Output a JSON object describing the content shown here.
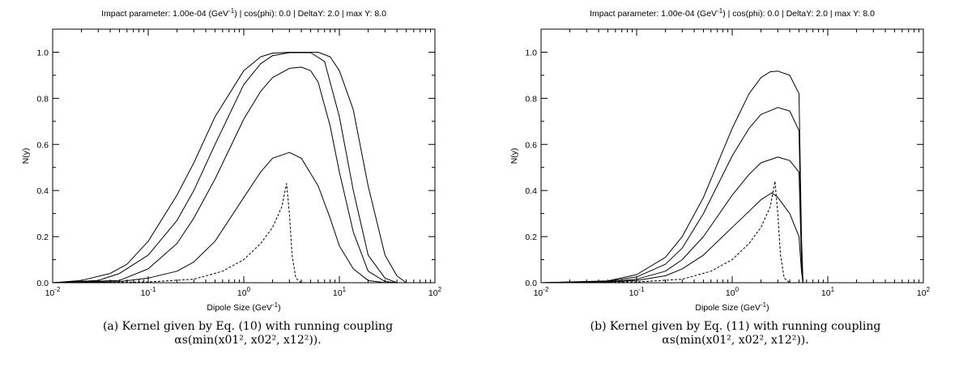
{
  "chart_data": [
    {
      "type": "line",
      "title": "Impact parameter: 1.00e-04 (GeV",
      "title_sup": "-1",
      "title_tail": ") | cos(phi): 0.0 | DeltaY: 2.0 | max Y: 8.0",
      "xlabel": "Dipole Size (GeV",
      "xlabel_sup": "-1",
      "xlabel_tail": ")",
      "ylabel": "N(y)",
      "xscale": "log",
      "xlim": [
        0.01,
        100
      ],
      "ylim": [
        0,
        1.1
      ],
      "x_ticks": [
        {
          "base": "10",
          "exp": "-2"
        },
        {
          "base": "10",
          "exp": "-1"
        },
        {
          "base": "10",
          "exp": "0"
        },
        {
          "base": "10",
          "exp": "1"
        },
        {
          "base": "10",
          "exp": "2"
        }
      ],
      "y_ticks": [
        "0.0",
        "0.2",
        "0.4",
        "0.6",
        "0.8",
        "1.0"
      ],
      "grid": false,
      "series": [
        {
          "style": "dashed",
          "points": [
            [
              0.01,
              0
            ],
            [
              0.1,
              0.003
            ],
            [
              0.3,
              0.015
            ],
            [
              0.6,
              0.05
            ],
            [
              1,
              0.1
            ],
            [
              1.5,
              0.17
            ],
            [
              2,
              0.24
            ],
            [
              2.5,
              0.33
            ],
            [
              2.8,
              0.43
            ],
            [
              3.0,
              0.3
            ],
            [
              3.2,
              0.12
            ],
            [
              3.5,
              0.02
            ],
            [
              4,
              0
            ],
            [
              100,
              0
            ]
          ]
        },
        {
          "style": "solid",
          "points": [
            [
              0.01,
              0
            ],
            [
              0.05,
              0.005
            ],
            [
              0.1,
              0.02
            ],
            [
              0.2,
              0.05
            ],
            [
              0.3,
              0.09
            ],
            [
              0.5,
              0.18
            ],
            [
              1,
              0.37
            ],
            [
              1.5,
              0.48
            ],
            [
              2,
              0.54
            ],
            [
              3,
              0.565
            ],
            [
              4,
              0.54
            ],
            [
              6,
              0.42
            ],
            [
              8,
              0.28
            ],
            [
              10,
              0.16
            ],
            [
              14,
              0.06
            ],
            [
              20,
              0.01
            ],
            [
              30,
              0
            ],
            [
              100,
              0
            ]
          ]
        },
        {
          "style": "solid",
          "points": [
            [
              0.01,
              0
            ],
            [
              0.05,
              0.01
            ],
            [
              0.1,
              0.06
            ],
            [
              0.2,
              0.17
            ],
            [
              0.3,
              0.28
            ],
            [
              0.5,
              0.45
            ],
            [
              1,
              0.71
            ],
            [
              1.5,
              0.83
            ],
            [
              2,
              0.89
            ],
            [
              3,
              0.93
            ],
            [
              4,
              0.935
            ],
            [
              5,
              0.92
            ],
            [
              6,
              0.87
            ],
            [
              8,
              0.68
            ],
            [
              10,
              0.48
            ],
            [
              14,
              0.22
            ],
            [
              20,
              0.05
            ],
            [
              30,
              0.005
            ],
            [
              40,
              0
            ],
            [
              100,
              0
            ]
          ]
        },
        {
          "style": "solid",
          "points": [
            [
              0.01,
              0
            ],
            [
              0.03,
              0.01
            ],
            [
              0.05,
              0.04
            ],
            [
              0.1,
              0.12
            ],
            [
              0.2,
              0.27
            ],
            [
              0.3,
              0.4
            ],
            [
              0.5,
              0.6
            ],
            [
              1,
              0.86
            ],
            [
              1.5,
              0.95
            ],
            [
              2,
              0.985
            ],
            [
              3,
              0.998
            ],
            [
              5,
              0.998
            ],
            [
              7,
              0.96
            ],
            [
              10,
              0.72
            ],
            [
              14,
              0.4
            ],
            [
              20,
              0.12
            ],
            [
              30,
              0.02
            ],
            [
              40,
              0
            ],
            [
              100,
              0
            ]
          ]
        },
        {
          "style": "solid",
          "points": [
            [
              0.01,
              0
            ],
            [
              0.02,
              0.01
            ],
            [
              0.04,
              0.04
            ],
            [
              0.06,
              0.08
            ],
            [
              0.1,
              0.18
            ],
            [
              0.2,
              0.38
            ],
            [
              0.3,
              0.52
            ],
            [
              0.5,
              0.72
            ],
            [
              1,
              0.92
            ],
            [
              1.5,
              0.98
            ],
            [
              2,
              0.996
            ],
            [
              3,
              1.0
            ],
            [
              6,
              1.0
            ],
            [
              8,
              0.98
            ],
            [
              10,
              0.92
            ],
            [
              14,
              0.75
            ],
            [
              20,
              0.42
            ],
            [
              30,
              0.12
            ],
            [
              40,
              0.03
            ],
            [
              50,
              0
            ],
            [
              100,
              0
            ]
          ]
        }
      ]
    },
    {
      "type": "line",
      "title": "Impact parameter: 1.00e-04 (GeV",
      "title_sup": "-1",
      "title_tail": ") | cos(phi): 0.0 | DeltaY: 2.0 | max Y: 8.0",
      "xlabel": "Dipole Size (GeV",
      "xlabel_sup": "-1",
      "xlabel_tail": ")",
      "ylabel": "N(y)",
      "xscale": "log",
      "xlim": [
        0.01,
        100
      ],
      "ylim": [
        0,
        1.1
      ],
      "x_ticks": [
        {
          "base": "10",
          "exp": "-2"
        },
        {
          "base": "10",
          "exp": "-1"
        },
        {
          "base": "10",
          "exp": "0"
        },
        {
          "base": "10",
          "exp": "1"
        },
        {
          "base": "10",
          "exp": "2"
        }
      ],
      "y_ticks": [
        "0.0",
        "0.2",
        "0.4",
        "0.6",
        "0.8",
        "1.0"
      ],
      "grid": false,
      "series": [
        {
          "style": "dashed",
          "points": [
            [
              0.01,
              0
            ],
            [
              0.1,
              0.003
            ],
            [
              0.3,
              0.015
            ],
            [
              0.6,
              0.05
            ],
            [
              1,
              0.1
            ],
            [
              1.5,
              0.17
            ],
            [
              2,
              0.24
            ],
            [
              2.5,
              0.33
            ],
            [
              2.8,
              0.44
            ],
            [
              3.0,
              0.3
            ],
            [
              3.2,
              0.12
            ],
            [
              3.5,
              0.02
            ],
            [
              4,
              0
            ],
            [
              100,
              0
            ]
          ]
        },
        {
          "style": "solid",
          "points": [
            [
              0.01,
              0
            ],
            [
              0.05,
              0.003
            ],
            [
              0.1,
              0.01
            ],
            [
              0.2,
              0.03
            ],
            [
              0.3,
              0.06
            ],
            [
              0.5,
              0.12
            ],
            [
              1,
              0.24
            ],
            [
              1.5,
              0.31
            ],
            [
              2,
              0.36
            ],
            [
              2.6,
              0.39
            ],
            [
              3,
              0.37
            ],
            [
              4,
              0.3
            ],
            [
              5,
              0.2
            ],
            [
              5.3,
              0.05
            ],
            [
              5.5,
              0
            ],
            [
              100,
              0
            ]
          ]
        },
        {
          "style": "solid",
          "points": [
            [
              0.01,
              0
            ],
            [
              0.05,
              0.004
            ],
            [
              0.1,
              0.015
            ],
            [
              0.2,
              0.05
            ],
            [
              0.3,
              0.1
            ],
            [
              0.5,
              0.2
            ],
            [
              1,
              0.38
            ],
            [
              1.5,
              0.47
            ],
            [
              2,
              0.52
            ],
            [
              3,
              0.545
            ],
            [
              4,
              0.53
            ],
            [
              5,
              0.48
            ],
            [
              5.3,
              0.1
            ],
            [
              5.5,
              0
            ],
            [
              100,
              0
            ]
          ]
        },
        {
          "style": "solid",
          "points": [
            [
              0.01,
              0
            ],
            [
              0.05,
              0.006
            ],
            [
              0.1,
              0.025
            ],
            [
              0.2,
              0.08
            ],
            [
              0.3,
              0.15
            ],
            [
              0.5,
              0.3
            ],
            [
              1,
              0.55
            ],
            [
              1.5,
              0.67
            ],
            [
              2,
              0.73
            ],
            [
              3,
              0.76
            ],
            [
              4,
              0.745
            ],
            [
              5,
              0.66
            ],
            [
              5.3,
              0.15
            ],
            [
              5.5,
              0
            ],
            [
              100,
              0
            ]
          ]
        },
        {
          "style": "solid",
          "points": [
            [
              0.01,
              0
            ],
            [
              0.05,
              0.008
            ],
            [
              0.1,
              0.035
            ],
            [
              0.2,
              0.11
            ],
            [
              0.3,
              0.2
            ],
            [
              0.5,
              0.37
            ],
            [
              1,
              0.67
            ],
            [
              1.5,
              0.82
            ],
            [
              2,
              0.89
            ],
            [
              2.5,
              0.915
            ],
            [
              3,
              0.918
            ],
            [
              4,
              0.9
            ],
            [
              5,
              0.82
            ],
            [
              5.3,
              0.2
            ],
            [
              5.5,
              0
            ],
            [
              100,
              0
            ]
          ]
        }
      ]
    }
  ],
  "captions": [
    {
      "line1": "(a) Kernel given by Eq. (10) with running coupling",
      "line2": "αs(min(x01², x02², x12²))."
    },
    {
      "line1": "(b) Kernel given by Eq. (11) with running coupling",
      "line2": "αs(min(x01², x02², x12²))."
    }
  ]
}
